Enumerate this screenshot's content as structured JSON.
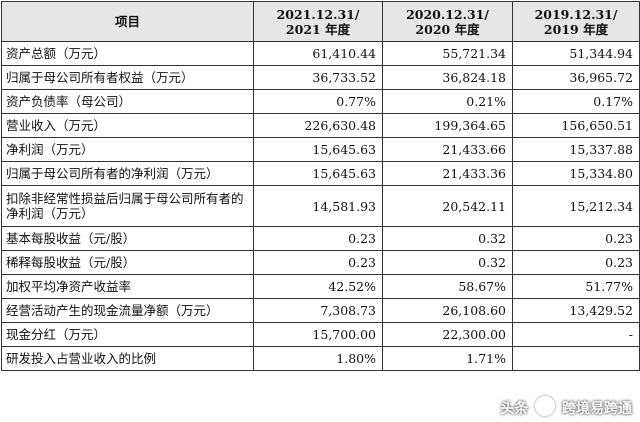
{
  "table": {
    "header": {
      "item_label": "项目",
      "periods": [
        {
          "line1": "2021.12.31/",
          "line2": "2021 年度"
        },
        {
          "line1": "2020.12.31/",
          "line2": "2020 年度"
        },
        {
          "line1": "2019.12.31/",
          "line2": "2019 年度"
        }
      ]
    },
    "rows": [
      {
        "label": "资产总额（万元）",
        "values": [
          "61,410.44",
          "55,721.34",
          "51,344.94"
        ]
      },
      {
        "label": "归属于母公司所有者权益（万元）",
        "values": [
          "36,733.52",
          "36,824.18",
          "36,965.72"
        ]
      },
      {
        "label": "资产负债率（母公司）",
        "values": [
          "0.77%",
          "0.21%",
          "0.17%"
        ]
      },
      {
        "label": "营业收入（万元）",
        "values": [
          "226,630.48",
          "199,364.65",
          "156,650.51"
        ]
      },
      {
        "label": "净利润（万元）",
        "values": [
          "15,645.63",
          "21,433.66",
          "15,337.88"
        ]
      },
      {
        "label": "归属于母公司所有者的净利润（万元）",
        "values": [
          "15,645.63",
          "21,433.36",
          "15,334.80"
        ]
      },
      {
        "label": "扣除非经常性损益后归属于母公司所有者的净利润（万元）",
        "values": [
          "14,581.93",
          "20,542.11",
          "15,212.34"
        ]
      },
      {
        "label": "基本每股收益（元/股）",
        "values": [
          "0.23",
          "0.32",
          "0.23"
        ]
      },
      {
        "label": "稀释每股收益（元/股）",
        "values": [
          "0.23",
          "0.32",
          "0.23"
        ]
      },
      {
        "label": "加权平均净资产收益率",
        "values": [
          "42.52%",
          "58.67%",
          "51.77%"
        ]
      },
      {
        "label": "经营活动产生的现金流量净额（万元）",
        "values": [
          "7,308.73",
          "26,108.60",
          "13,429.52"
        ]
      },
      {
        "label": "现金分红（万元）",
        "values": [
          "15,700.00",
          "22,300.00",
          "-"
        ]
      },
      {
        "label": "研发投入占营业收入的比例",
        "values": [
          "1.80%",
          "1.71%",
          ""
        ]
      }
    ]
  },
  "watermark": {
    "prefix": "头条",
    "account": "跨境易跨通"
  }
}
